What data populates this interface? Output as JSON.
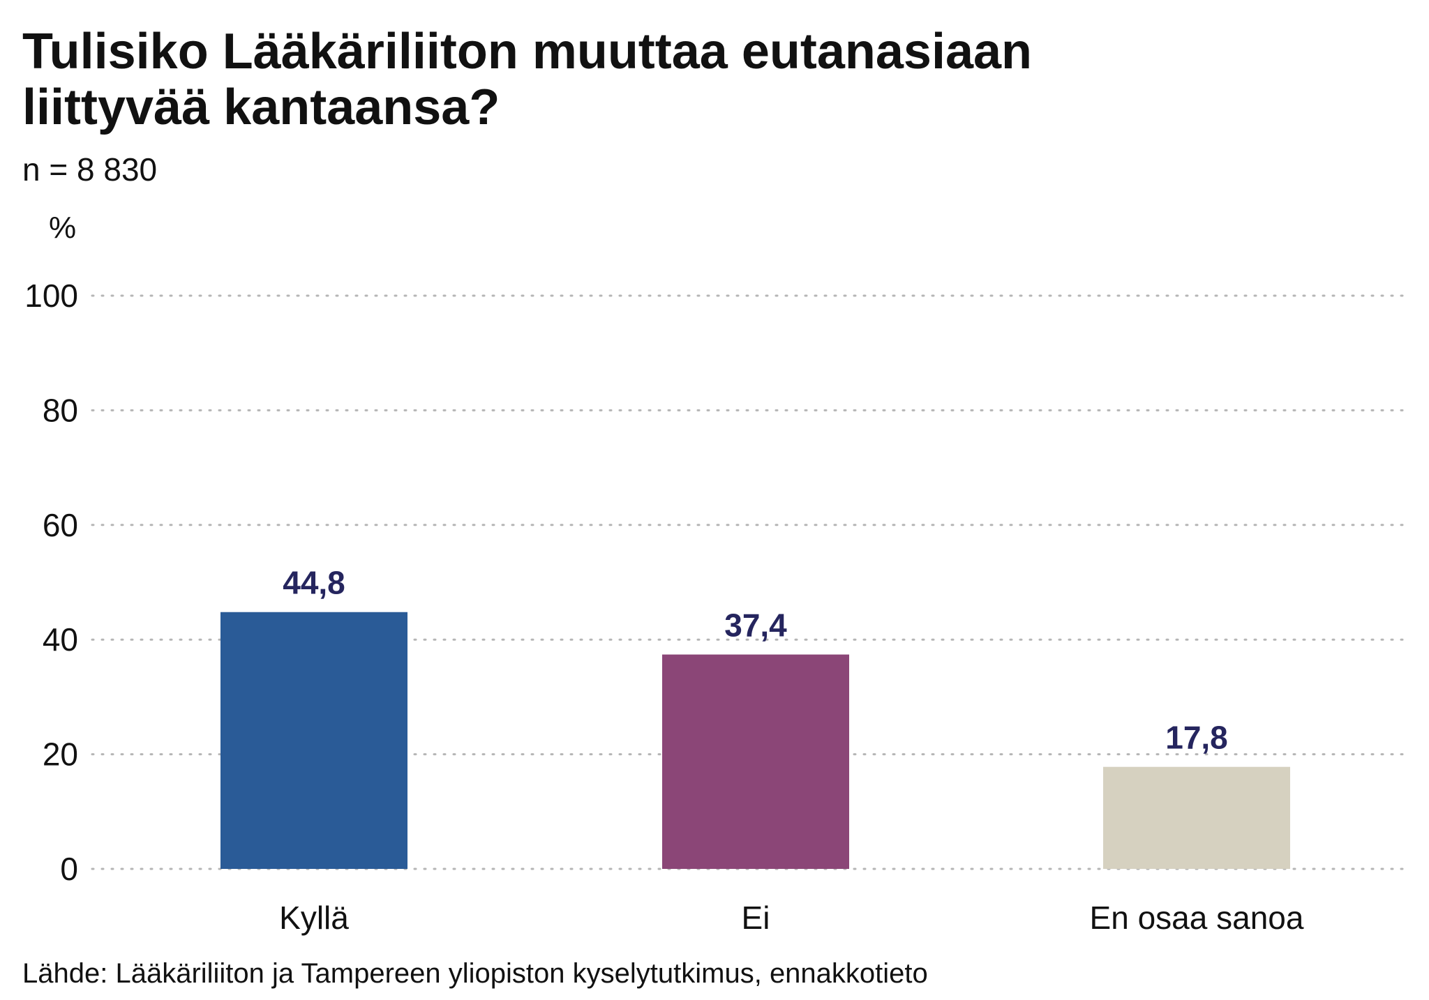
{
  "chart_data": {
    "type": "bar",
    "title": "Tulisiko Lääkäriliiton muuttaa eutanasiaan liittyvää kantaansa?",
    "subtitle": "n = 8 830",
    "ylabel": "%",
    "xlabel": "",
    "ylim": [
      0,
      100
    ],
    "yticks": [
      "0",
      "20",
      "40",
      "60",
      "80",
      "100"
    ],
    "grid": true,
    "categories": [
      "Kyllä",
      "Ei",
      "En osaa sanoa"
    ],
    "values": [
      44.8,
      37.4,
      17.8
    ],
    "value_labels": [
      "44,8",
      "37,4",
      "17,8"
    ],
    "colors": [
      "#2a5b97",
      "#8b4677",
      "#d6d1c0"
    ],
    "label_color": "#25255e",
    "source": "Lähde: Lääkäriliiton ja Tampereen yliopiston kyselytutkimus, ennakkotieto"
  }
}
